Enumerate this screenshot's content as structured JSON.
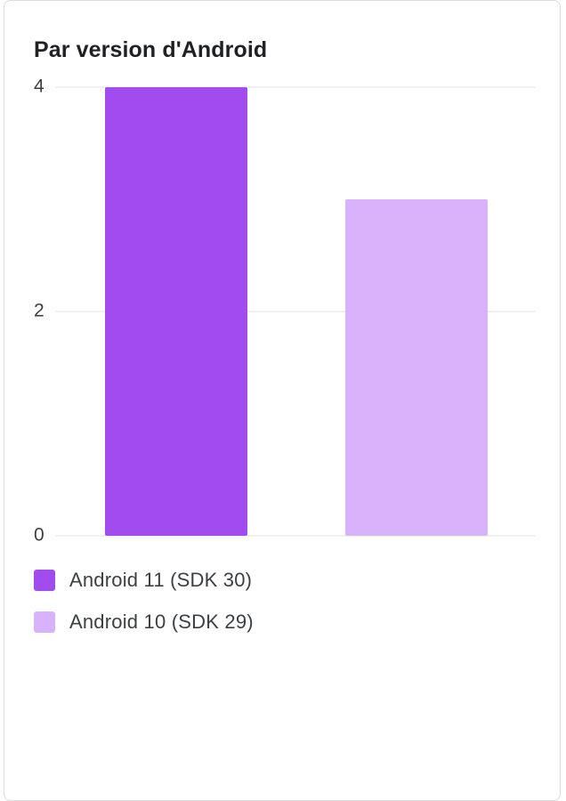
{
  "chart_data": {
    "type": "bar",
    "title": "Par version d'Android",
    "categories": [
      "Android 11 (SDK 30)",
      "Android 10 (SDK 29)"
    ],
    "values": [
      4,
      3
    ],
    "colors": [
      "#a24bef",
      "#d8b3fb"
    ],
    "yticks": [
      "0",
      "2",
      "4"
    ],
    "ylim": [
      0,
      4
    ],
    "grid": true,
    "legend_position": "bottom"
  }
}
